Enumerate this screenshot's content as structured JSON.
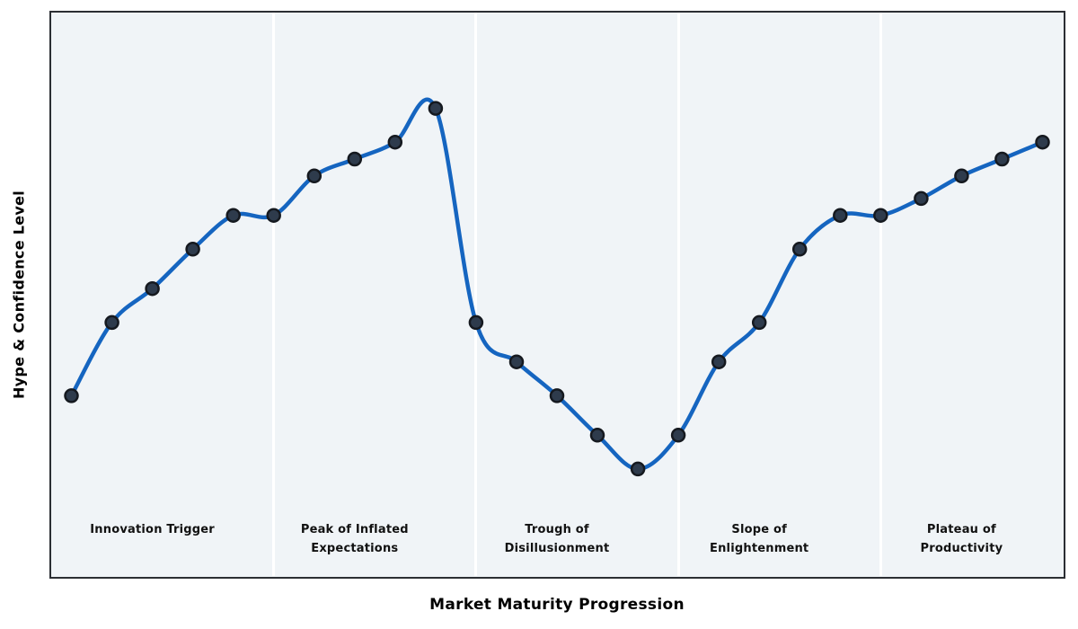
{
  "chart_data": {
    "type": "line",
    "title": "",
    "xlabel": "Market Maturity Progression",
    "ylabel": "Hype & Confidence Level",
    "x": [
      0,
      1,
      2,
      3,
      4,
      5,
      6,
      7,
      8,
      9,
      10,
      11,
      12,
      13,
      14,
      15,
      16,
      17,
      18,
      19,
      20,
      21,
      22,
      23,
      24
    ],
    "series": [
      {
        "name": "Hype & Confidence Level",
        "values": [
          32,
          45,
          51,
          58,
          64,
          64,
          71,
          74,
          77,
          83,
          45,
          38,
          32,
          25,
          19,
          25,
          38,
          45,
          58,
          64,
          64,
          67,
          71,
          74,
          77
        ]
      }
    ],
    "xlim": [
      -0.5,
      24.5
    ],
    "ylim": [
      0,
      100
    ],
    "grid": false,
    "smooth": true,
    "legend": "none",
    "axis_ticks": "none",
    "marker": "circle",
    "phase_boundaries_x": [
      5,
      10,
      15,
      20
    ],
    "phases": [
      {
        "lines": [
          "Innovation Trigger"
        ],
        "center_x": 2
      },
      {
        "lines": [
          "Peak of Inflated",
          "Expectations"
        ],
        "center_x": 7
      },
      {
        "lines": [
          "Trough of",
          "Disillusionment"
        ],
        "center_x": 12
      },
      {
        "lines": [
          "Slope of",
          "Enlightenment"
        ],
        "center_x": 17
      },
      {
        "lines": [
          "Plateau of",
          "Productivity"
        ],
        "center_x": 22
      }
    ],
    "colors": {
      "line": "#1565c0",
      "marker_fill": "#2e3b4c",
      "marker_edge": "#15191f",
      "plot_background": "#f0f4f7",
      "divider": "#ffffff",
      "frame": "#2b2e33",
      "label_text": "#111111"
    }
  }
}
